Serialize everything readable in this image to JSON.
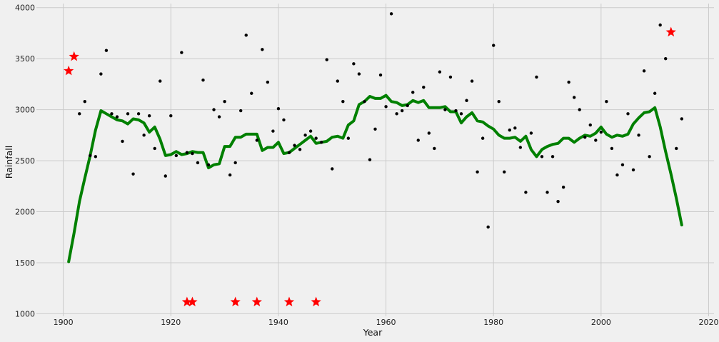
{
  "chart_data": {
    "type": "scatter",
    "title": "",
    "xlabel": "Year",
    "ylabel": "Rainfall",
    "xlim": [
      1895,
      2021
    ],
    "ylim": [
      975,
      4040
    ],
    "xticks": [
      1900,
      1920,
      1940,
      1960,
      1980,
      2000,
      2020
    ],
    "yticks": [
      1000,
      1500,
      2000,
      2500,
      3000,
      3500,
      4000
    ],
    "grid": true,
    "legend": "none",
    "colors": {
      "background": "#f0f0f0",
      "grid": "#cbcbcb",
      "points": "#000000",
      "trend": "#008000",
      "anomaly": "#ff0000"
    },
    "series": [
      {
        "type": "scatter",
        "marker": "dot",
        "x": [
          1901,
          1902,
          1903,
          1904,
          1905,
          1906,
          1907,
          1908,
          1909,
          1910,
          1911,
          1912,
          1913,
          1914,
          1915,
          1916,
          1917,
          1918,
          1919,
          1920,
          1921,
          1922,
          1923,
          1924,
          1925,
          1926,
          1927,
          1928,
          1929,
          1930,
          1931,
          1932,
          1933,
          1934,
          1935,
          1936,
          1937,
          1938,
          1939,
          1940,
          1941,
          1942,
          1943,
          1944,
          1945,
          1946,
          1947,
          1948,
          1949,
          1950,
          1951,
          1952,
          1953,
          1954,
          1955,
          1956,
          1957,
          1958,
          1959,
          1960,
          1961,
          1962,
          1963,
          1964,
          1965,
          1966,
          1967,
          1968,
          1969,
          1970,
          1971,
          1972,
          1973,
          1974,
          1975,
          1976,
          1977,
          1978,
          1979,
          1980,
          1981,
          1982,
          1983,
          1984,
          1985,
          1986,
          1987,
          1988,
          1989,
          1990,
          1991,
          1992,
          1993,
          1994,
          1995,
          1996,
          1997,
          1998,
          1999,
          2000,
          2001,
          2002,
          2003,
          2004,
          2005,
          2006,
          2007,
          2008,
          2009,
          2010,
          2011,
          2012,
          2013,
          2014,
          2015
        ],
        "y": [
          3380,
          3520,
          2960,
          3080,
          2550,
          2540,
          3350,
          3580,
          2960,
          2930,
          2690,
          2960,
          2370,
          2960,
          2750,
          2940,
          2620,
          3280,
          2350,
          2940,
          2550,
          3560,
          2580,
          2570,
          2480,
          3290,
          2460,
          3000,
          2930,
          3080,
          2360,
          2480,
          2990,
          3730,
          3160,
          2700,
          3590,
          3270,
          2790,
          3010,
          2900,
          2580,
          2650,
          2610,
          2750,
          2790,
          2720,
          2680,
          3490,
          2420,
          3280,
          3080,
          2720,
          3450,
          3350,
          3080,
          2510,
          2810,
          3340,
          3030,
          3940,
          2960,
          2990,
          3040,
          3170,
          2700,
          3220,
          2770,
          2620,
          3370,
          3000,
          3320,
          2990,
          2960,
          3090,
          3280,
          2390,
          2720,
          1850,
          3630,
          3080,
          2390,
          2800,
          2820,
          2630,
          2190,
          2770,
          3320,
          2540,
          2190,
          2540,
          2100,
          2240,
          3270,
          3120,
          3000,
          2730,
          2850,
          2700,
          2780,
          3080,
          2620,
          2360,
          2460,
          2960,
          2410,
          2750,
          3380,
          2540,
          3160,
          3830,
          3500,
          3760,
          2620,
          2910
        ]
      },
      {
        "type": "line",
        "x": [
          1901,
          1902,
          1903,
          1904,
          1905,
          1906,
          1907,
          1908,
          1909,
          1910,
          1911,
          1912,
          1913,
          1914,
          1915,
          1916,
          1917,
          1918,
          1919,
          1920,
          1921,
          1922,
          1923,
          1924,
          1925,
          1926,
          1927,
          1928,
          1929,
          1930,
          1931,
          1932,
          1933,
          1934,
          1935,
          1936,
          1937,
          1938,
          1939,
          1940,
          1941,
          1942,
          1943,
          1944,
          1945,
          1946,
          1947,
          1948,
          1949,
          1950,
          1951,
          1952,
          1953,
          1954,
          1955,
          1956,
          1957,
          1958,
          1959,
          1960,
          1961,
          1962,
          1963,
          1964,
          1965,
          1966,
          1967,
          1968,
          1969,
          1970,
          1971,
          1972,
          1973,
          1974,
          1975,
          1976,
          1977,
          1978,
          1979,
          1980,
          1981,
          1982,
          1983,
          1984,
          1985,
          1986,
          1987,
          1988,
          1989,
          1990,
          1991,
          1992,
          1993,
          1994,
          1995,
          1996,
          1997,
          1998,
          1999,
          2000,
          2001,
          2002,
          2003,
          2004,
          2005,
          2006,
          2007,
          2008,
          2009,
          2010,
          2011,
          2012,
          2013,
          2014,
          2015
        ],
        "y": [
          1510,
          1790,
          2100,
          2330,
          2550,
          2800,
          2990,
          2960,
          2930,
          2900,
          2890,
          2860,
          2910,
          2900,
          2870,
          2780,
          2830,
          2710,
          2550,
          2560,
          2590,
          2560,
          2570,
          2590,
          2580,
          2580,
          2430,
          2460,
          2470,
          2640,
          2640,
          2730,
          2730,
          2760,
          2760,
          2760,
          2600,
          2630,
          2630,
          2680,
          2570,
          2580,
          2620,
          2660,
          2700,
          2740,
          2670,
          2680,
          2690,
          2730,
          2740,
          2720,
          2850,
          2890,
          3050,
          3080,
          3130,
          3110,
          3110,
          3140,
          3080,
          3070,
          3040,
          3050,
          3090,
          3070,
          3090,
          3020,
          3020,
          3020,
          3030,
          2980,
          2980,
          2870,
          2930,
          2970,
          2890,
          2880,
          2840,
          2810,
          2750,
          2720,
          2720,
          2730,
          2690,
          2740,
          2610,
          2540,
          2610,
          2640,
          2660,
          2670,
          2720,
          2720,
          2680,
          2720,
          2750,
          2740,
          2770,
          2830,
          2760,
          2730,
          2750,
          2740,
          2760,
          2860,
          2920,
          2970,
          2980,
          3020,
          2830,
          2590,
          2370,
          2130,
          1870
        ]
      },
      {
        "type": "scatter",
        "marker": "star",
        "x": [
          1901,
          1902,
          1923,
          1924,
          1932,
          1936,
          1942,
          1947,
          2013
        ],
        "y": [
          3380,
          3520,
          1115,
          1115,
          1115,
          1115,
          1115,
          1115,
          3760
        ]
      }
    ]
  }
}
